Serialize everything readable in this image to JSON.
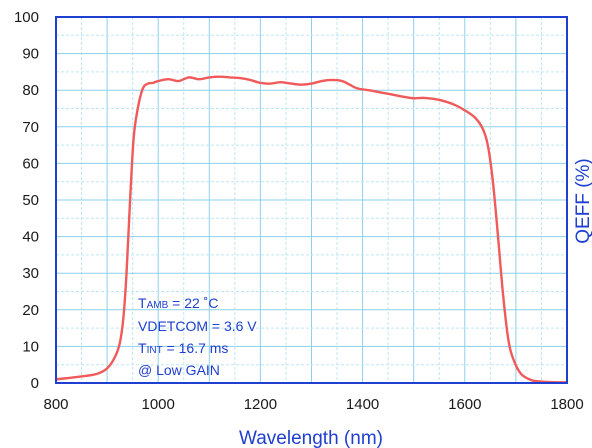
{
  "chart_data": {
    "type": "line",
    "xlabel": "Wavelength (nm)",
    "ylabel": "QEFF (%)",
    "xlim": [
      800,
      1800
    ],
    "ylim": [
      0,
      100
    ],
    "x_ticks": [
      "800",
      "1000",
      "1200",
      "1400",
      "1600",
      "1800"
    ],
    "y_ticks": [
      "0",
      "10",
      "20",
      "30",
      "40",
      "50",
      "60",
      "70",
      "80",
      "90",
      "100"
    ],
    "grid": true,
    "colors": {
      "line": "#f05a5a",
      "axis": "#1e3fd0",
      "grid": "#8cd0ea",
      "grid_minor": "#bfe6f4"
    },
    "annotations": {
      "tamb_prefix": "T",
      "tamb_sub": "AMB",
      "tamb_value": " = 22 ˚C",
      "vdetcom": "VDETCOM = 3.6 V",
      "tint_prefix": "T",
      "tint_sub": "INT",
      "tint_value": " = 16.7 ms",
      "gain": "@ Low GAIN"
    },
    "series": [
      {
        "x": [
          800,
          850,
          880,
          900,
          915,
          925,
          932,
          938,
          945,
          952,
          960,
          970,
          980,
          990,
          1000,
          1020,
          1040,
          1060,
          1080,
          1100,
          1120,
          1140,
          1160,
          1180,
          1200,
          1220,
          1240,
          1260,
          1280,
          1300,
          1320,
          1340,
          1360,
          1375,
          1390,
          1420,
          1450,
          1480,
          1500,
          1520,
          1540,
          1560,
          1580,
          1600,
          1620,
          1635,
          1645,
          1655,
          1665,
          1675,
          1685,
          1695,
          1710,
          1730,
          1750,
          1780,
          1800
        ],
        "y": [
          1.0,
          1.8,
          2.5,
          4.0,
          7.0,
          11.0,
          18.0,
          30.0,
          50.0,
          67.0,
          75.0,
          80.5,
          81.8,
          82.0,
          82.5,
          83.0,
          82.5,
          83.5,
          83.0,
          83.5,
          83.7,
          83.5,
          83.3,
          82.8,
          82.0,
          81.8,
          82.2,
          81.8,
          81.5,
          81.8,
          82.5,
          82.8,
          82.5,
          81.5,
          80.5,
          79.8,
          79.0,
          78.2,
          77.8,
          77.9,
          77.6,
          77.0,
          76.0,
          74.5,
          72.5,
          69.5,
          65.0,
          55.0,
          40.0,
          24.0,
          12.0,
          6.5,
          2.5,
          0.8,
          0.4,
          0.2,
          0.2
        ]
      }
    ]
  }
}
